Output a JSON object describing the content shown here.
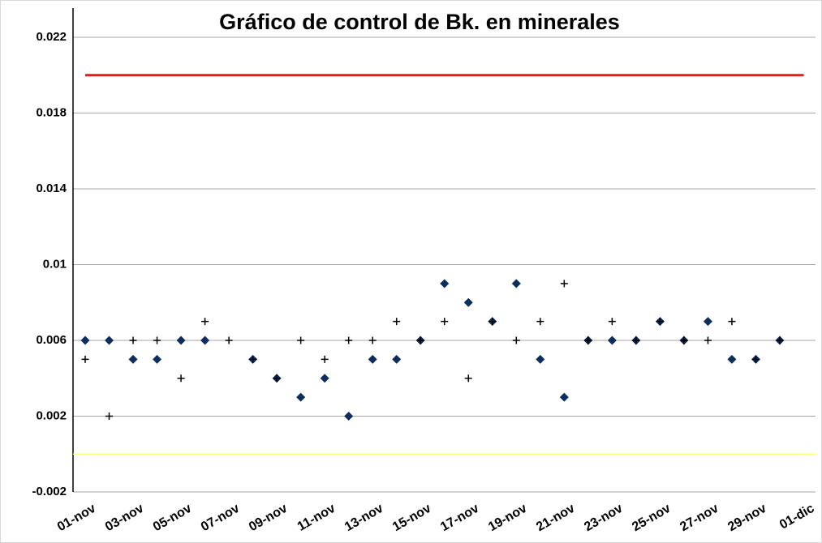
{
  "chart_data": {
    "type": "scatter",
    "title": "Gráfico de control de Bk. en minerales",
    "categories": [
      "01-nov",
      null,
      "03-nov",
      null,
      "05-nov",
      null,
      "07-nov",
      null,
      "09-nov",
      null,
      "11-nov",
      null,
      "13-nov",
      null,
      "15-nov",
      null,
      "17-nov",
      null,
      "19-nov",
      null,
      "21-nov",
      null,
      "23-nov",
      null,
      "25-nov",
      null,
      "27-nov",
      null,
      "29-nov",
      null,
      "01-dic"
    ],
    "series": [
      {
        "marker": "line",
        "color": "#e41a1c",
        "values": [
          0.02,
          0.02,
          0.02,
          0.02,
          0.02,
          0.02,
          0.02,
          0.02,
          0.02,
          0.02,
          0.02,
          0.02,
          0.02,
          0.02,
          0.02,
          0.02,
          0.02,
          0.02,
          0.02,
          0.02,
          0.02,
          0.02,
          0.02,
          0.02,
          0.02,
          0.02,
          0.02,
          0.02,
          0.02,
          0.02,
          0.02
        ]
      },
      {
        "marker": "diamond",
        "color": "#0c2d5e",
        "values": [
          0.006,
          0.006,
          0.005,
          0.005,
          0.006,
          0.006,
          null,
          0.005,
          0.004,
          0.003,
          0.004,
          0.002,
          0.005,
          0.005,
          0.006,
          0.009,
          0.008,
          0.007,
          0.009,
          0.005,
          0.003,
          0.006,
          0.006,
          0.006,
          0.007,
          0.006,
          0.007,
          0.005,
          0.005,
          0.006,
          null
        ]
      },
      {
        "marker": "plus",
        "color": "#000000",
        "values": [
          0.005,
          0.002,
          0.006,
          0.006,
          0.004,
          0.007,
          0.006,
          0.005,
          0.004,
          0.006,
          0.005,
          0.006,
          0.006,
          0.007,
          0.006,
          0.007,
          0.004,
          0.007,
          0.006,
          0.007,
          0.009,
          0.006,
          0.007,
          0.006,
          0.007,
          0.006,
          0.006,
          0.007,
          0.005,
          0.006,
          null
        ]
      }
    ],
    "reference_lines": [
      {
        "value": 0,
        "color": "#ffff80"
      }
    ],
    "ylim": [
      -0.002,
      0.022
    ],
    "yticks": [
      -0.002,
      0.002,
      0.006,
      0.01,
      0.014,
      0.018,
      0.022
    ],
    "grid": true
  }
}
